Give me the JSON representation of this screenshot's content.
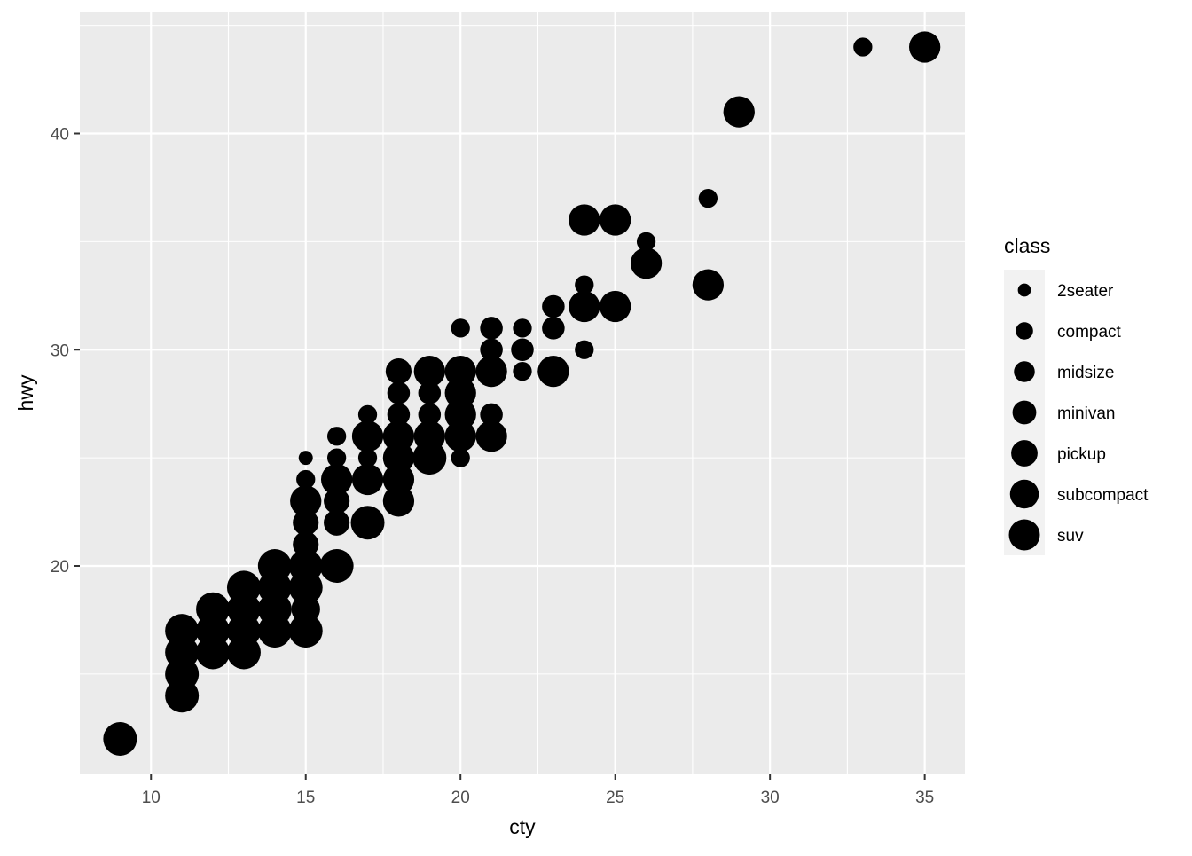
{
  "chart_data": {
    "type": "scatter",
    "xlabel": "cty",
    "ylabel": "hwy",
    "xlim": [
      7.7,
      36.3
    ],
    "ylim": [
      10.4,
      45.6
    ],
    "x_ticks": [
      10,
      15,
      20,
      25,
      30,
      35
    ],
    "x_tick_labels": [
      "10",
      "15",
      "20",
      "25",
      "30",
      "35"
    ],
    "y_ticks": [
      20,
      30,
      40
    ],
    "y_tick_labels": [
      "20",
      "30",
      "40"
    ],
    "grid": true,
    "panel_background": "#ebebeb",
    "grid_color": "#ffffff",
    "point_color": "#000000",
    "legend": {
      "title": "class",
      "position": "right",
      "aesthetic": "size",
      "entries": [
        "2seater",
        "compact",
        "midsize",
        "minivan",
        "pickup",
        "subcompact",
        "suv"
      ]
    },
    "points": [
      {
        "x": 9,
        "y": 12,
        "class": "suv"
      },
      {
        "x": 11,
        "y": 14,
        "class": "suv"
      },
      {
        "x": 11,
        "y": 15,
        "class": "suv"
      },
      {
        "x": 11,
        "y": 16,
        "class": "suv"
      },
      {
        "x": 11,
        "y": 17,
        "class": "suv"
      },
      {
        "x": 12,
        "y": 16,
        "class": "suv"
      },
      {
        "x": 12,
        "y": 17,
        "class": "suv"
      },
      {
        "x": 12,
        "y": 18,
        "class": "suv"
      },
      {
        "x": 13,
        "y": 16,
        "class": "suv"
      },
      {
        "x": 13,
        "y": 17,
        "class": "suv"
      },
      {
        "x": 13,
        "y": 18,
        "class": "suv"
      },
      {
        "x": 13,
        "y": 19,
        "class": "suv"
      },
      {
        "x": 14,
        "y": 17,
        "class": "suv"
      },
      {
        "x": 14,
        "y": 18,
        "class": "suv"
      },
      {
        "x": 14,
        "y": 19,
        "class": "suv"
      },
      {
        "x": 14,
        "y": 20,
        "class": "suv"
      },
      {
        "x": 15,
        "y": 17,
        "class": "suv"
      },
      {
        "x": 15,
        "y": 18,
        "class": "pickup"
      },
      {
        "x": 15,
        "y": 19,
        "class": "suv"
      },
      {
        "x": 15,
        "y": 20,
        "class": "suv"
      },
      {
        "x": 15,
        "y": 21,
        "class": "minivan"
      },
      {
        "x": 15,
        "y": 22,
        "class": "minivan"
      },
      {
        "x": 15,
        "y": 23,
        "class": "subcompact"
      },
      {
        "x": 15,
        "y": 24,
        "class": "compact"
      },
      {
        "x": 15,
        "y": 25,
        "class": "2seater"
      },
      {
        "x": 16,
        "y": 20,
        "class": "suv"
      },
      {
        "x": 16,
        "y": 22,
        "class": "minivan"
      },
      {
        "x": 16,
        "y": 23,
        "class": "minivan"
      },
      {
        "x": 16,
        "y": 24,
        "class": "subcompact"
      },
      {
        "x": 16,
        "y": 25,
        "class": "compact"
      },
      {
        "x": 16,
        "y": 26,
        "class": "compact"
      },
      {
        "x": 17,
        "y": 22,
        "class": "suv"
      },
      {
        "x": 17,
        "y": 24,
        "class": "subcompact"
      },
      {
        "x": 17,
        "y": 25,
        "class": "compact"
      },
      {
        "x": 17,
        "y": 26,
        "class": "subcompact"
      },
      {
        "x": 17,
        "y": 27,
        "class": "compact"
      },
      {
        "x": 18,
        "y": 23,
        "class": "subcompact"
      },
      {
        "x": 18,
        "y": 24,
        "class": "subcompact"
      },
      {
        "x": 18,
        "y": 25,
        "class": "subcompact"
      },
      {
        "x": 18,
        "y": 26,
        "class": "subcompact"
      },
      {
        "x": 18,
        "y": 27,
        "class": "midsize"
      },
      {
        "x": 18,
        "y": 28,
        "class": "midsize"
      },
      {
        "x": 18,
        "y": 29,
        "class": "minivan"
      },
      {
        "x": 19,
        "y": 25,
        "class": "suv"
      },
      {
        "x": 19,
        "y": 26,
        "class": "subcompact"
      },
      {
        "x": 19,
        "y": 27,
        "class": "midsize"
      },
      {
        "x": 19,
        "y": 28,
        "class": "midsize"
      },
      {
        "x": 19,
        "y": 29,
        "class": "subcompact"
      },
      {
        "x": 20,
        "y": 25,
        "class": "compact"
      },
      {
        "x": 20,
        "y": 26,
        "class": "subcompact"
      },
      {
        "x": 20,
        "y": 27,
        "class": "subcompact"
      },
      {
        "x": 20,
        "y": 28,
        "class": "subcompact"
      },
      {
        "x": 20,
        "y": 29,
        "class": "subcompact"
      },
      {
        "x": 20,
        "y": 31,
        "class": "compact"
      },
      {
        "x": 21,
        "y": 26,
        "class": "subcompact"
      },
      {
        "x": 21,
        "y": 27,
        "class": "midsize"
      },
      {
        "x": 21,
        "y": 29,
        "class": "subcompact"
      },
      {
        "x": 21,
        "y": 30,
        "class": "midsize"
      },
      {
        "x": 21,
        "y": 31,
        "class": "midsize"
      },
      {
        "x": 22,
        "y": 29,
        "class": "compact"
      },
      {
        "x": 22,
        "y": 30,
        "class": "midsize"
      },
      {
        "x": 22,
        "y": 31,
        "class": "compact"
      },
      {
        "x": 23,
        "y": 29,
        "class": "subcompact"
      },
      {
        "x": 23,
        "y": 31,
        "class": "midsize"
      },
      {
        "x": 23,
        "y": 32,
        "class": "midsize"
      },
      {
        "x": 24,
        "y": 30,
        "class": "compact"
      },
      {
        "x": 24,
        "y": 32,
        "class": "subcompact"
      },
      {
        "x": 24,
        "y": 33,
        "class": "compact"
      },
      {
        "x": 24,
        "y": 36,
        "class": "subcompact"
      },
      {
        "x": 25,
        "y": 32,
        "class": "subcompact"
      },
      {
        "x": 25,
        "y": 36,
        "class": "subcompact"
      },
      {
        "x": 26,
        "y": 34,
        "class": "subcompact"
      },
      {
        "x": 26,
        "y": 35,
        "class": "compact"
      },
      {
        "x": 28,
        "y": 33,
        "class": "subcompact"
      },
      {
        "x": 28,
        "y": 37,
        "class": "compact"
      },
      {
        "x": 29,
        "y": 41,
        "class": "subcompact"
      },
      {
        "x": 33,
        "y": 44,
        "class": "compact"
      },
      {
        "x": 35,
        "y": 44,
        "class": "subcompact"
      }
    ]
  }
}
